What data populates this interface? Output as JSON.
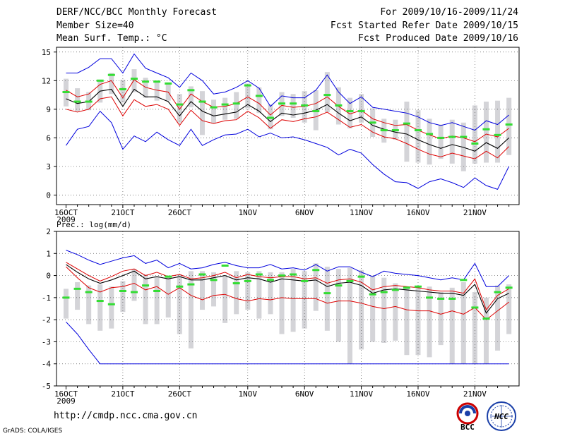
{
  "header": {
    "title": "DERF/NCC/BCC Monthly Forecast",
    "member_size": "Member Size=40",
    "variable": "Mean Surf. Temp.: °C",
    "for_period": "For 2009/10/16-2009/11/24",
    "fcst_started": "Fcst Started Refer Date 2009/10/15",
    "fcst_produced": "Fcst Produced Date 2009/10/16"
  },
  "footer": {
    "url": "http://cmdp.ncc.cma.gov.cn",
    "credit": "GrADS: COLA/IGES",
    "logo_bcc": "BCC",
    "logo_ncc": "NCC"
  },
  "colors": {
    "envelope": "#0000dd",
    "spread": "#dd0000",
    "mean": "#000000",
    "median": "#33dd33",
    "box": "#d4d4d8",
    "grid": "#555555"
  },
  "chart_data": [
    {
      "type": "line",
      "title": "Mean Surf. Temp.: °C",
      "ylabel": "°C",
      "ylim": [
        -1,
        15.5
      ],
      "yticks": [
        0,
        3,
        6,
        9,
        12,
        15
      ],
      "x_ticks": [
        {
          "day": 1,
          "label": "16OCT",
          "sub": "2009"
        },
        {
          "day": 6,
          "label": "21OCT"
        },
        {
          "day": 11,
          "label": "26OCT"
        },
        {
          "day": 17,
          "label": "1NOV"
        },
        {
          "day": 22,
          "label": "6NOV"
        },
        {
          "day": 27,
          "label": "11NOV"
        },
        {
          "day": 32,
          "label": "16NOV"
        },
        {
          "day": 37,
          "label": "21NOV"
        }
      ],
      "days": [
        1,
        2,
        3,
        4,
        5,
        6,
        7,
        8,
        9,
        10,
        11,
        12,
        13,
        14,
        15,
        16,
        17,
        18,
        19,
        20,
        21,
        22,
        23,
        24,
        25,
        26,
        27,
        28,
        29,
        30,
        31,
        32,
        33,
        34,
        35,
        36,
        37,
        38,
        39,
        40
      ],
      "max": [
        12.8,
        12.8,
        13.4,
        14.3,
        14.3,
        12.8,
        14.8,
        13.3,
        12.8,
        12.3,
        11.3,
        12.8,
        12.0,
        10.6,
        10.8,
        11.3,
        12.0,
        11.2,
        9.3,
        10.4,
        10.2,
        10.2,
        11.0,
        12.6,
        10.8,
        9.6,
        10.3,
        9.2,
        9.0,
        8.8,
        8.6,
        8.2,
        7.6,
        7.3,
        7.6,
        7.2,
        6.8,
        7.8,
        7.4,
        8.4
      ],
      "upper": [
        11.0,
        10.3,
        10.6,
        11.6,
        12.0,
        10.2,
        12.1,
        11.3,
        11.0,
        10.8,
        9.0,
        10.6,
        9.8,
        9.2,
        9.3,
        9.6,
        10.3,
        9.6,
        8.4,
        9.4,
        9.2,
        9.3,
        9.6,
        10.3,
        9.3,
        8.5,
        8.9,
        8.0,
        7.6,
        7.3,
        7.4,
        6.8,
        6.3,
        5.9,
        6.2,
        6.0,
        5.6,
        6.4,
        6.1,
        7.0
      ],
      "mean": [
        10.1,
        9.6,
        9.8,
        10.9,
        11.1,
        9.3,
        11.1,
        10.3,
        10.3,
        9.8,
        8.3,
        9.8,
        8.8,
        8.3,
        8.5,
        8.7,
        9.5,
        8.8,
        7.7,
        8.6,
        8.4,
        8.6,
        8.9,
        9.5,
        8.6,
        7.8,
        8.2,
        7.3,
        6.9,
        6.6,
        6.4,
        5.8,
        5.3,
        4.9,
        5.3,
        5.0,
        4.6,
        5.5,
        4.9,
        6.0
      ],
      "lower": [
        9.0,
        8.7,
        9.0,
        10.1,
        10.3,
        8.3,
        10.0,
        9.3,
        9.5,
        9.0,
        7.3,
        8.9,
        7.8,
        7.5,
        7.8,
        7.9,
        8.8,
        8.1,
        7.0,
        7.9,
        7.7,
        8.0,
        8.2,
        8.7,
        7.9,
        7.1,
        7.4,
        6.6,
        6.1,
        5.9,
        5.4,
        4.8,
        4.3,
        4.0,
        4.4,
        4.1,
        3.8,
        4.6,
        3.9,
        5.1
      ],
      "min": [
        5.2,
        6.9,
        7.2,
        8.8,
        7.6,
        4.8,
        6.2,
        5.6,
        6.6,
        5.8,
        5.2,
        6.9,
        5.2,
        5.8,
        6.3,
        6.4,
        6.9,
        6.1,
        6.5,
        6.0,
        6.1,
        5.8,
        5.4,
        5.0,
        4.2,
        4.8,
        4.4,
        3.2,
        2.2,
        1.4,
        1.3,
        0.7,
        1.4,
        1.7,
        1.3,
        0.8,
        1.8,
        1.0,
        0.6,
        3.0
      ],
      "box_top": [
        12.2,
        11.2,
        10.8,
        12.1,
        12.8,
        12.1,
        13.2,
        12.3,
        12.0,
        11.8,
        10.6,
        11.4,
        10.9,
        10.0,
        10.2,
        10.8,
        11.7,
        11.3,
        9.5,
        10.8,
        10.6,
        10.9,
        11.0,
        12.9,
        11.3,
        10.2,
        10.6,
        9.1,
        8.0,
        7.9,
        9.8,
        8.9,
        8.0,
        7.4,
        7.9,
        7.6,
        9.4,
        9.8,
        9.9,
        10.2
      ],
      "box_bottom": [
        9.3,
        8.8,
        8.9,
        9.7,
        10.6,
        9.7,
        10.8,
        10.2,
        9.9,
        9.9,
        7.6,
        9.2,
        6.3,
        7.5,
        7.9,
        8.0,
        9.1,
        8.6,
        6.9,
        8.3,
        8.1,
        7.6,
        6.8,
        8.7,
        7.4,
        7.0,
        7.6,
        6.1,
        5.5,
        5.8,
        3.5,
        3.4,
        3.2,
        3.8,
        3.3,
        2.5,
        3.3,
        3.4,
        3.4,
        4.2
      ],
      "median": [
        10.8,
        9.8,
        9.8,
        12.0,
        12.6,
        11.1,
        12.2,
        11.9,
        11.9,
        11.7,
        9.5,
        11.0,
        9.8,
        9.2,
        9.5,
        9.6,
        11.5,
        10.4,
        8.1,
        9.6,
        9.6,
        9.4,
        8.8,
        10.5,
        9.4,
        8.8,
        8.8,
        7.6,
        6.8,
        6.8,
        7.5,
        6.8,
        6.4,
        6.0,
        6.1,
        6.1,
        5.4,
        6.9,
        6.3,
        7.4
      ]
    },
    {
      "type": "line",
      "title": "Prec.: log(mm/d)",
      "ylabel": "log(mm/d)",
      "ylim": [
        -5,
        2
      ],
      "yticks": [
        -5,
        -4,
        -3,
        -2,
        -1,
        0,
        1,
        2
      ],
      "x_ticks": [
        {
          "day": 1,
          "label": "16OCT",
          "sub": "2009"
        },
        {
          "day": 6,
          "label": "21OCT"
        },
        {
          "day": 11,
          "label": "26OCT"
        },
        {
          "day": 17,
          "label": "1NOV"
        },
        {
          "day": 22,
          "label": "6NOV"
        },
        {
          "day": 27,
          "label": "11NOV"
        },
        {
          "day": 32,
          "label": "16NOV"
        },
        {
          "day": 37,
          "label": "21NOV"
        }
      ],
      "days": [
        1,
        2,
        3,
        4,
        5,
        6,
        7,
        8,
        9,
        10,
        11,
        12,
        13,
        14,
        15,
        16,
        17,
        18,
        19,
        20,
        21,
        22,
        23,
        24,
        25,
        26,
        27,
        28,
        29,
        30,
        31,
        32,
        33,
        34,
        35,
        36,
        37,
        38,
        39,
        40
      ],
      "max": [
        1.15,
        0.95,
        0.7,
        0.5,
        0.65,
        0.8,
        0.9,
        0.55,
        0.7,
        0.35,
        0.55,
        0.3,
        0.35,
        0.5,
        0.6,
        0.45,
        0.35,
        0.35,
        0.5,
        0.3,
        0.35,
        0.25,
        0.5,
        0.2,
        0.4,
        0.4,
        0.15,
        -0.05,
        0.2,
        0.1,
        0.05,
        0.0,
        -0.1,
        -0.2,
        -0.1,
        -0.2,
        0.55,
        -0.5,
        -0.5,
        0.0
      ],
      "upper": [
        0.6,
        0.3,
        0.0,
        -0.25,
        -0.05,
        0.2,
        0.3,
        0.0,
        0.15,
        -0.05,
        0.05,
        -0.15,
        -0.1,
        0.0,
        0.15,
        -0.1,
        0.05,
        -0.05,
        -0.1,
        -0.05,
        -0.05,
        -0.15,
        -0.1,
        -0.35,
        -0.2,
        -0.15,
        -0.3,
        -0.65,
        -0.5,
        -0.45,
        -0.5,
        -0.55,
        -0.65,
        -0.7,
        -0.7,
        -0.8,
        -0.15,
        -1.55,
        -0.9,
        -0.6
      ],
      "mean": [
        0.5,
        0.15,
        -0.15,
        -0.35,
        -0.2,
        0.0,
        0.2,
        -0.15,
        -0.05,
        -0.15,
        -0.05,
        -0.2,
        -0.2,
        -0.1,
        0.0,
        -0.2,
        -0.1,
        -0.15,
        -0.3,
        -0.15,
        -0.2,
        -0.25,
        -0.2,
        -0.5,
        -0.35,
        -0.3,
        -0.45,
        -0.8,
        -0.65,
        -0.6,
        -0.65,
        -0.7,
        -0.75,
        -0.8,
        -0.8,
        -0.9,
        -0.4,
        -1.7,
        -1.05,
        -0.8
      ],
      "lower": [
        0.4,
        -0.1,
        -0.55,
        -0.75,
        -0.55,
        -0.5,
        -0.35,
        -0.65,
        -0.5,
        -0.85,
        -0.55,
        -0.9,
        -1.1,
        -0.9,
        -0.85,
        -1.05,
        -1.15,
        -1.05,
        -1.1,
        -1.0,
        -1.05,
        -1.05,
        -1.05,
        -1.25,
        -1.15,
        -1.15,
        -1.25,
        -1.4,
        -1.5,
        -1.4,
        -1.55,
        -1.6,
        -1.6,
        -1.75,
        -1.6,
        -1.75,
        -1.45,
        -2.0,
        -1.6,
        -1.2
      ],
      "min": [
        -2.1,
        -2.65,
        -3.35,
        -4.0,
        -4.0,
        -4.0,
        -4.0,
        -4.0,
        -4.0,
        -4.0,
        -4.0,
        -4.0,
        -4.0,
        -4.0,
        -4.0,
        -4.0,
        -4.0,
        -4.0,
        -4.0,
        -4.0,
        -4.0,
        -4.0,
        -4.0,
        -4.0,
        -4.0,
        -4.0,
        -4.0,
        -4.0,
        -4.0,
        -4.0,
        -4.0,
        -4.0,
        -4.0,
        -4.0,
        -4.0,
        -4.0,
        -4.0,
        -4.0,
        -4.0,
        -4.0
      ],
      "box_top": [
        -0.6,
        -0.3,
        -0.45,
        -0.4,
        -0.5,
        -0.25,
        0.3,
        0.05,
        -0.05,
        -0.05,
        0.05,
        0.2,
        0.2,
        0.15,
        -0.05,
        0.2,
        0.15,
        0.2,
        0.15,
        0.15,
        0.3,
        0.2,
        0.55,
        0.4,
        0.3,
        0.35,
        0.25,
        0.0,
        -0.1,
        -0.35,
        -0.5,
        -0.5,
        -0.5,
        -0.75,
        -0.55,
        -0.3,
        -0.75,
        -1.0,
        -0.45,
        -0.4
      ],
      "box_bottom": [
        -1.95,
        -1.55,
        -2.2,
        -2.5,
        -2.4,
        -1.65,
        -1.15,
        -2.2,
        -2.2,
        -1.9,
        -2.65,
        -3.3,
        -1.55,
        -1.4,
        -2.15,
        -1.75,
        -1.55,
        -1.95,
        -1.75,
        -2.65,
        -2.55,
        -2.4,
        -1.6,
        -2.5,
        -3.0,
        -4.0,
        -3.35,
        -3.0,
        -3.05,
        -2.95,
        -3.6,
        -3.6,
        -3.7,
        -3.15,
        -4.0,
        -4.0,
        -4.0,
        -4.0,
        -3.4,
        -2.65
      ],
      "median": [
        -1.0,
        -0.6,
        -0.75,
        -1.15,
        -1.3,
        -0.7,
        -0.75,
        -0.45,
        -0.7,
        -0.05,
        -0.5,
        -0.4,
        0.05,
        -0.2,
        0.45,
        -0.35,
        -0.25,
        0.05,
        -0.2,
        0.0,
        0.05,
        -0.25,
        0.25,
        -0.8,
        -0.45,
        -0.25,
        -0.05,
        -0.85,
        -0.75,
        -0.65,
        -0.55,
        -0.5,
        -1.0,
        -1.05,
        -1.05,
        -0.2,
        -1.45,
        -1.95,
        -0.75,
        -0.55
      ]
    }
  ]
}
